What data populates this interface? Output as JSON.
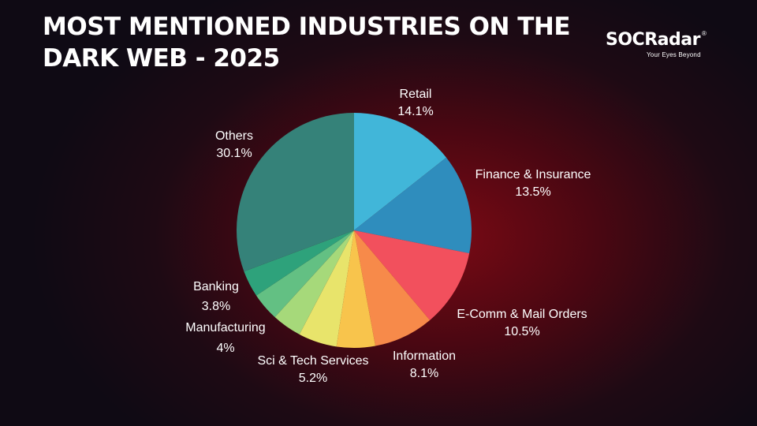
{
  "header": {
    "title_line1": "MOST MENTIONED INDUSTRIES ON THE",
    "title_line2": "DARK WEB - 2025"
  },
  "logo": {
    "wordmark": "SOCRadar",
    "registered": "®",
    "tagline": "Your Eyes Beyond"
  },
  "chart_data": {
    "type": "pie",
    "title": "MOST MENTIONED INDUSTRIES ON THE DARK WEB - 2025",
    "slices": [
      {
        "label": "Retail",
        "value_label": "14.1%",
        "value": 14.1,
        "color": "#41b6d9"
      },
      {
        "label": "Finance & Insurance",
        "value_label": "13.5%",
        "value": 13.5,
        "color": "#2f8dbd"
      },
      {
        "label": "E-Comm & Mail Orders",
        "value_label": "10.5%",
        "value": 10.5,
        "color": "#f2505d"
      },
      {
        "label": "Information",
        "value_label": "8.1%",
        "value": 8.1,
        "color": "#f78a4a"
      },
      {
        "label": "",
        "value_label": "",
        "value": 5.2,
        "color": "#f8c44c"
      },
      {
        "label": "Sci & Tech Services",
        "value_label": "5.2%",
        "value": 5.2,
        "color": "#e8e46b"
      },
      {
        "label": "Manufacturing",
        "value_label": "4%",
        "value": 4.0,
        "color": "#a6d97a"
      },
      {
        "label": "Banking",
        "value_label": "3.8%",
        "value": 3.8,
        "color": "#63c083"
      },
      {
        "label": "",
        "value_label": "",
        "value": 3.6,
        "color": "#2ea27b"
      },
      {
        "label": "Others",
        "value_label": "30.1%",
        "value": 30.1,
        "color": "#358279"
      }
    ]
  }
}
